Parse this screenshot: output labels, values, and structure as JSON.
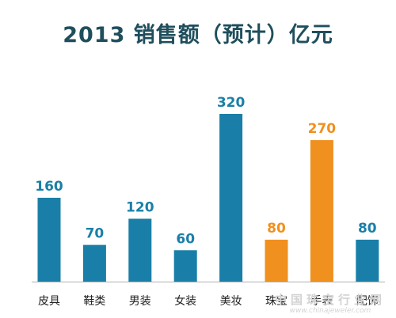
{
  "chart_data": {
    "type": "bar",
    "title": "2013 销售额（预计）亿元",
    "categories": [
      "皮具",
      "鞋类",
      "男装",
      "女装",
      "美妆",
      "珠宝",
      "手表",
      "配饰"
    ],
    "values": [
      160,
      70,
      120,
      60,
      320,
      80,
      270,
      80
    ],
    "bar_colors": [
      "#1a7fa8",
      "#1a7fa8",
      "#1a7fa8",
      "#1a7fa8",
      "#1a7fa8",
      "#f0901e",
      "#f0901e",
      "#1a7fa8"
    ],
    "label_colors": [
      "#1a7fa8",
      "#1a7fa8",
      "#1a7fa8",
      "#1a7fa8",
      "#1a7fa8",
      "#f0901e",
      "#f0901e",
      "#1a7fa8"
    ],
    "ylim": [
      0,
      320
    ],
    "grid": false,
    "legend": "none"
  },
  "colors": {
    "title": "#1f4e5c",
    "axis": "#b0b0b0",
    "category_label": "#222222",
    "watermark": "#d3d3d3"
  },
  "watermark": {
    "text": "中国珠宝行业网",
    "url": "www.chinajeweler.com"
  }
}
